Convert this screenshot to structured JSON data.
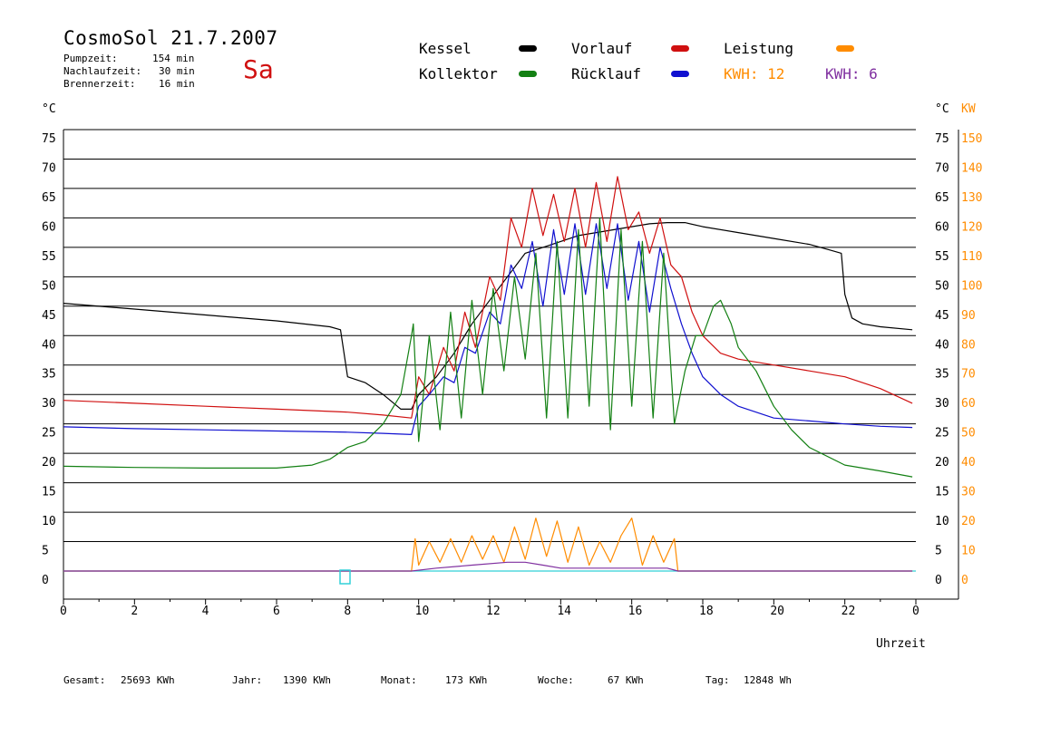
{
  "header": {
    "title": "CosmoSol 21.7.2007",
    "day": "Sa",
    "stats": [
      {
        "label": "Pumpzeit:",
        "value": "154 min"
      },
      {
        "label": "Nachlaufzeit:",
        "value": "30 min"
      },
      {
        "label": "Brennerzeit:",
        "value": "16 min"
      }
    ]
  },
  "legend": {
    "kessel": "Kessel",
    "kollektor": "Kollektor",
    "vorlauf": "Vorlauf",
    "ruecklauf": "Rücklauf",
    "leistung": "Leistung",
    "kwh_orange": "KWH: 12",
    "kwh_purple": "KWH: 6"
  },
  "axes": {
    "left_unit": "°C",
    "right_unit": "°C",
    "right_kw_unit": "KW",
    "xlabel": "Uhrzeit"
  },
  "footer": [
    {
      "label": "Gesamt:",
      "value": "25693 KWh"
    },
    {
      "label": "Jahr:",
      "value": "1390 KWh"
    },
    {
      "label": "Monat:",
      "value": "173 KWh"
    },
    {
      "label": "Woche:",
      "value": "67 KWh"
    },
    {
      "label": "Tag:",
      "value": "12848 Wh"
    }
  ],
  "colors": {
    "kessel": "#000000",
    "kollektor": "#138013",
    "vorlauf": "#d01010",
    "ruecklauf": "#1010d0",
    "leistung": "#ff8c00",
    "purple": "#8030a0",
    "cyan": "#30d0d8"
  },
  "chart_data": {
    "type": "line",
    "title": "CosmoSol 21.7.2007",
    "xlabel": "Uhrzeit",
    "ylabel": "°C",
    "xlim": [
      0,
      24
    ],
    "ylim": [
      0,
      75
    ],
    "y2lim": [
      0,
      150
    ],
    "y2label": "KW",
    "grid": true,
    "x_ticks": [
      "0",
      "2",
      "4",
      "6",
      "8",
      "10",
      "12",
      "14",
      "16",
      "18",
      "20",
      "22",
      "0"
    ],
    "y_ticks": [
      0,
      5,
      10,
      15,
      20,
      25,
      30,
      35,
      40,
      45,
      50,
      55,
      60,
      65,
      70,
      75
    ],
    "y2_ticks": [
      0,
      10,
      20,
      30,
      40,
      50,
      60,
      70,
      80,
      90,
      100,
      110,
      120,
      130,
      140,
      150
    ],
    "series": [
      {
        "name": "Kessel",
        "color": "#000000",
        "x": [
          0,
          2,
          4,
          6,
          7.5,
          7.8,
          8.0,
          8.5,
          9.0,
          9.5,
          9.8,
          10.0,
          10.5,
          11.0,
          11.5,
          12.0,
          12.5,
          13.0,
          13.5,
          14.0,
          14.5,
          15.0,
          15.5,
          16.0,
          16.5,
          17.0,
          17.5,
          18.0,
          19.0,
          20.0,
          21.0,
          21.6,
          21.9,
          22.0,
          22.2,
          22.5,
          23.0,
          23.9
        ],
        "y": [
          45.5,
          44.5,
          43.5,
          42.5,
          41.5,
          41.0,
          33,
          32,
          30,
          27.5,
          27.5,
          30,
          33,
          37,
          42,
          46,
          50,
          54,
          55,
          56,
          57,
          57.5,
          58,
          58.5,
          59,
          59.2,
          59.2,
          58.5,
          57.5,
          56.5,
          55.5,
          54.5,
          54.0,
          47,
          43,
          42,
          41.5,
          41
        ]
      },
      {
        "name": "Vorlauf",
        "color": "#d01010",
        "x": [
          0,
          2,
          4,
          6,
          8,
          9,
          9.8,
          10.0,
          10.3,
          10.7,
          11.0,
          11.3,
          11.6,
          12.0,
          12.3,
          12.6,
          12.9,
          13.2,
          13.5,
          13.8,
          14.1,
          14.4,
          14.7,
          15.0,
          15.3,
          15.6,
          15.9,
          16.2,
          16.5,
          16.8,
          17.1,
          17.4,
          17.7,
          18.0,
          18.5,
          19.0,
          20.0,
          21.0,
          22.0,
          23.0,
          23.9
        ],
        "y": [
          29,
          28.5,
          28,
          27.5,
          27,
          26.5,
          26,
          33,
          30,
          38,
          34,
          44,
          38,
          50,
          46,
          60,
          55,
          65,
          57,
          64,
          56,
          65,
          55,
          66,
          56,
          67,
          58,
          61,
          54,
          60,
          52,
          50,
          44,
          40,
          37,
          36,
          35,
          34,
          33,
          31,
          28.5
        ]
      },
      {
        "name": "Rücklauf",
        "color": "#1010d0",
        "x": [
          0,
          2,
          4,
          6,
          8,
          9,
          9.8,
          10.0,
          10.3,
          10.7,
          11.0,
          11.3,
          11.6,
          12.0,
          12.3,
          12.6,
          12.9,
          13.2,
          13.5,
          13.8,
          14.1,
          14.4,
          14.7,
          15.0,
          15.3,
          15.6,
          15.9,
          16.2,
          16.5,
          16.8,
          17.1,
          17.4,
          17.7,
          18.0,
          18.5,
          19.0,
          20.0,
          21.0,
          22.0,
          23.0,
          23.9
        ],
        "y": [
          24.5,
          24.2,
          24,
          23.8,
          23.6,
          23.4,
          23.2,
          28,
          30,
          33,
          32,
          38,
          37,
          44,
          42,
          52,
          48,
          56,
          45,
          58,
          47,
          59,
          47,
          59,
          48,
          59,
          46,
          56,
          44,
          55,
          48,
          42,
          37,
          33,
          30,
          28,
          26,
          25.5,
          25,
          24.6,
          24.4
        ]
      },
      {
        "name": "Kollektor",
        "color": "#138013",
        "x": [
          0,
          2,
          4,
          6,
          7.0,
          7.5,
          8.0,
          8.5,
          9.0,
          9.5,
          9.8,
          9.85,
          10.0,
          10.3,
          10.6,
          10.9,
          11.2,
          11.5,
          11.8,
          12.1,
          12.4,
          12.7,
          13.0,
          13.3,
          13.6,
          13.9,
          14.2,
          14.5,
          14.8,
          15.1,
          15.4,
          15.7,
          16.0,
          16.3,
          16.6,
          16.9,
          17.2,
          17.5,
          17.8,
          18.0,
          18.3,
          18.5,
          18.8,
          19.0,
          19.5,
          20.0,
          20.5,
          21.0,
          22.0,
          23.0,
          23.9
        ],
        "y": [
          17.8,
          17.6,
          17.5,
          17.5,
          18,
          19,
          21,
          22,
          25,
          30,
          40,
          42,
          22,
          40,
          24,
          44,
          26,
          46,
          30,
          48,
          34,
          50,
          36,
          54,
          26,
          56,
          26,
          58,
          28,
          60,
          24,
          58,
          28,
          56,
          26,
          54,
          25,
          34,
          40,
          40,
          45,
          46,
          42,
          38,
          34,
          28,
          24,
          21,
          18,
          17,
          16
        ]
      },
      {
        "name": "Leistung",
        "color": "#ff8c00",
        "x": [
          0,
          9.8,
          9.9,
          10.0,
          10.3,
          10.6,
          10.9,
          11.2,
          11.5,
          11.8,
          12.1,
          12.4,
          12.7,
          13.0,
          13.3,
          13.6,
          13.9,
          14.2,
          14.5,
          14.8,
          15.1,
          15.4,
          15.7,
          16.0,
          16.3,
          16.6,
          16.9,
          17.2,
          17.3,
          23.9
        ],
        "y": [
          0,
          0,
          11,
          2,
          10,
          3,
          11,
          3,
          12,
          4,
          12,
          3,
          15,
          4,
          18,
          5,
          17,
          3,
          15,
          2,
          10,
          3,
          12,
          18,
          2,
          12,
          3,
          11,
          0,
          0
        ]
      },
      {
        "name": "KWH",
        "color": "#8030a0",
        "x": [
          0,
          9.8,
          10.5,
          11.5,
          12.5,
          13.0,
          13.5,
          14.0,
          15.0,
          16.0,
          17.0,
          17.3,
          23.9
        ],
        "y": [
          0,
          0,
          1,
          2,
          3,
          3,
          2,
          1,
          1,
          1,
          1,
          0,
          0
        ]
      }
    ]
  }
}
